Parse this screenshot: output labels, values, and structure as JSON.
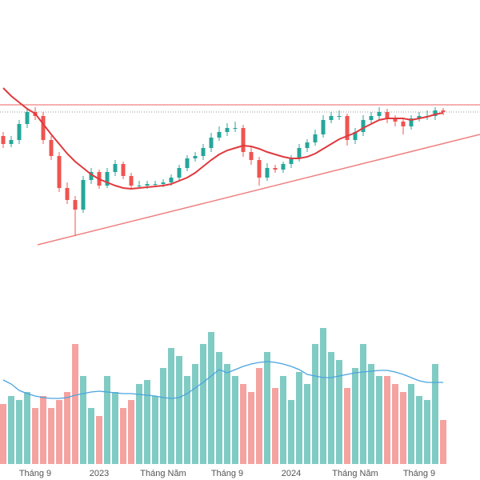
{
  "chart_data": {
    "type": "candlestick",
    "categories": [
      null,
      null,
      null,
      null,
      "Tháng 9",
      null,
      null,
      null,
      null,
      null,
      null,
      null,
      "2023",
      null,
      null,
      null,
      null,
      null,
      null,
      null,
      "Tháng Năm",
      null,
      null,
      null,
      null,
      null,
      null,
      null,
      "Tháng 9",
      null,
      null,
      null,
      null,
      null,
      null,
      null,
      "2024",
      null,
      null,
      null,
      null,
      null,
      null,
      null,
      "Tháng Năm",
      null,
      null,
      null,
      null,
      null,
      null,
      null,
      "Tháng 9",
      null,
      null,
      null
    ],
    "open": [
      160,
      150,
      155,
      175,
      190,
      185,
      155,
      135,
      95,
      80,
      68,
      105,
      115,
      98,
      115,
      125,
      110,
      98,
      98,
      100,
      100,
      102,
      108,
      120,
      132,
      135,
      145,
      158,
      165,
      170,
      170,
      140,
      130,
      108,
      120,
      118,
      125,
      132,
      145,
      152,
      162,
      180,
      185,
      185,
      155,
      165,
      180,
      185,
      190,
      182,
      178,
      172,
      182,
      185,
      185,
      192
    ],
    "high": [
      165,
      160,
      180,
      195,
      196,
      190,
      160,
      140,
      102,
      85,
      110,
      120,
      118,
      120,
      130,
      128,
      114,
      104,
      104,
      104,
      106,
      112,
      124,
      136,
      140,
      150,
      164,
      172,
      176,
      178,
      174,
      146,
      134,
      126,
      124,
      128,
      136,
      150,
      156,
      168,
      186,
      190,
      192,
      188,
      170,
      186,
      190,
      196,
      194,
      186,
      182,
      186,
      190,
      192,
      196,
      195
    ],
    "low": [
      145,
      146,
      150,
      170,
      180,
      150,
      130,
      90,
      75,
      35,
      64,
      100,
      94,
      95,
      110,
      106,
      94,
      94,
      94,
      96,
      96,
      98,
      104,
      116,
      128,
      130,
      140,
      154,
      160,
      165,
      134,
      124,
      98,
      104,
      114,
      114,
      120,
      128,
      140,
      148,
      158,
      176,
      180,
      148,
      150,
      160,
      176,
      180,
      176,
      172,
      162,
      168,
      178,
      180,
      180,
      186
    ],
    "close": [
      150,
      155,
      175,
      190,
      185,
      155,
      135,
      95,
      80,
      68,
      105,
      115,
      98,
      115,
      125,
      110,
      98,
      98,
      100,
      100,
      102,
      108,
      120,
      132,
      135,
      145,
      158,
      165,
      170,
      170,
      140,
      130,
      108,
      120,
      118,
      125,
      132,
      145,
      152,
      162,
      180,
      185,
      185,
      155,
      165,
      180,
      185,
      190,
      182,
      178,
      172,
      182,
      185,
      185,
      192,
      190
    ],
    "up_color": "#26a69a",
    "down_color": "#ef5350",
    "ylim": [
      0,
      300
    ],
    "ma": {
      "color": "#e0393e",
      "values": [
        220,
        210,
        202,
        194,
        188,
        175,
        162,
        150,
        138,
        128,
        120,
        112,
        106,
        102,
        98,
        95,
        94,
        95,
        96,
        97,
        98,
        100,
        104,
        108,
        114,
        122,
        130,
        137,
        142,
        145,
        148,
        147,
        144,
        140,
        137,
        134,
        132,
        132,
        134,
        138,
        144,
        150,
        156,
        160,
        164,
        170,
        175,
        180,
        182,
        182,
        182,
        180,
        182,
        184,
        187,
        189
      ]
    },
    "resistance": {
      "value": 199,
      "color": "#f08080"
    },
    "last_price": {
      "value": 190,
      "color": "#999999"
    },
    "trendline": {
      "x": [
        4.3,
        59.6
      ],
      "y": [
        24,
        162
      ],
      "color": "#f08080"
    },
    "volume": {
      "values": [
        75,
        85,
        80,
        90,
        70,
        85,
        70,
        80,
        90,
        150,
        110,
        70,
        60,
        110,
        90,
        70,
        80,
        100,
        105,
        85,
        120,
        145,
        135,
        110,
        125,
        150,
        165,
        140,
        125,
        110,
        100,
        90,
        120,
        140,
        95,
        110,
        80,
        115,
        100,
        150,
        170,
        140,
        130,
        95,
        120,
        150,
        125,
        110,
        110,
        100,
        90,
        100,
        85,
        80,
        125,
        55
      ],
      "ylim": [
        0,
        180
      ],
      "up_color": "#80cbc4",
      "down_color": "#f5a3a0",
      "ma": {
        "color": "#4aa3df",
        "values": [
          105,
          100,
          92,
          88,
          85,
          83,
          82,
          82,
          83,
          86,
          88,
          90,
          91,
          90,
          89,
          88,
          88,
          87,
          86,
          85,
          83,
          82,
          83,
          88,
          95,
          102,
          110,
          118,
          114,
          118,
          122,
          125,
          127,
          128,
          127,
          125,
          122,
          118,
          112,
          110,
          108,
          108,
          110,
          112,
          114,
          115,
          116,
          117,
          117,
          115,
          112,
          108,
          104,
          102,
          102,
          102
        ]
      }
    }
  }
}
